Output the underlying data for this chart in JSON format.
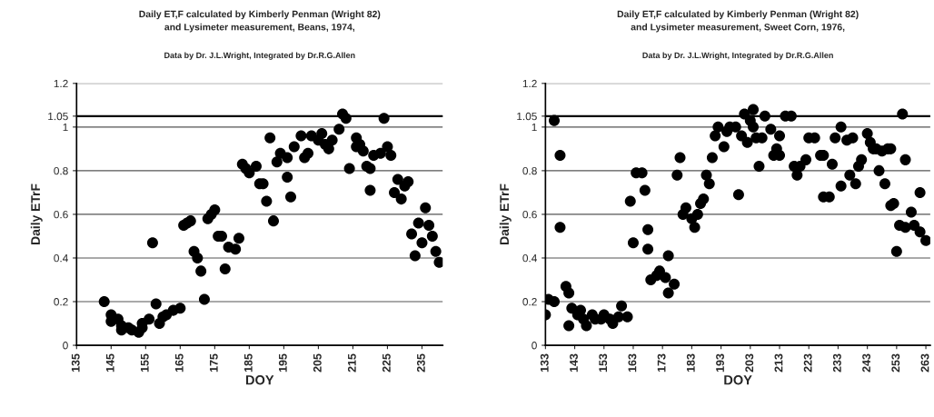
{
  "chart_data": [
    {
      "type": "scatter",
      "title": "Daily ET,F calculated by Kimberly Penman (Wright 82)\nand Lysimeter measurement, Beans, 1974,",
      "subtitle": "Data by Dr. J.L.Wright, Integrated by Dr.R.G.Allen",
      "xlabel": "DOY",
      "ylabel": "Daily ETrF",
      "xlim": [
        135,
        241
      ],
      "xticks": [
        135,
        145,
        155,
        165,
        175,
        185,
        195,
        205,
        215,
        225,
        235
      ],
      "ylim": [
        0,
        1.2
      ],
      "yticks": [
        0,
        0.2,
        0.4,
        0.6,
        0.8,
        1,
        1.05,
        1.2
      ],
      "grid": "y",
      "marker": "circle",
      "ref_lines": [
        {
          "axis": "y",
          "value": 1.05,
          "color": "#000000"
        }
      ],
      "series": [
        {
          "color": "#000000",
          "x": [
            143,
            145,
            145,
            147,
            148,
            148,
            150,
            151,
            153,
            154,
            154,
            156,
            157,
            158,
            159,
            160,
            161,
            163,
            165,
            166,
            167,
            168,
            169,
            170,
            171,
            172,
            173,
            174,
            175,
            176,
            177,
            178,
            179,
            181,
            182,
            183,
            184,
            185,
            187,
            188,
            189,
            190,
            191,
            192,
            193,
            194,
            196,
            196,
            197,
            198,
            200,
            201,
            202,
            203,
            205,
            206,
            207,
            208,
            209,
            211,
            212,
            213,
            214,
            216,
            216,
            217,
            218,
            219,
            220,
            220,
            221,
            223,
            224,
            225,
            226,
            227,
            228,
            229,
            230,
            231,
            232,
            233,
            234,
            235,
            236,
            237,
            238,
            239,
            240
          ],
          "values": [
            0.2,
            0.14,
            0.11,
            0.12,
            0.09,
            0.07,
            0.08,
            0.07,
            0.06,
            0.1,
            0.08,
            0.12,
            0.47,
            0.19,
            0.1,
            0.13,
            0.14,
            0.16,
            0.17,
            0.55,
            0.56,
            0.57,
            0.43,
            0.4,
            0.34,
            0.21,
            0.58,
            0.6,
            0.62,
            0.5,
            0.5,
            0.35,
            0.45,
            0.44,
            0.49,
            0.83,
            0.81,
            0.79,
            0.82,
            0.74,
            0.74,
            0.66,
            0.95,
            0.57,
            0.84,
            0.88,
            0.86,
            0.77,
            0.68,
            0.91,
            0.96,
            0.86,
            0.88,
            0.96,
            0.94,
            0.97,
            0.92,
            0.9,
            0.94,
            0.99,
            1.06,
            1.04,
            0.81,
            0.95,
            0.91,
            0.92,
            0.89,
            0.82,
            0.81,
            0.71,
            0.87,
            0.88,
            1.04,
            0.91,
            0.87,
            0.7,
            0.76,
            0.67,
            0.73,
            0.75,
            0.51,
            0.41,
            0.56,
            0.47,
            0.63,
            0.55,
            0.5,
            0.43,
            0.38
          ]
        }
      ]
    },
    {
      "type": "scatter",
      "title": "Daily ET,F calculated by Kimberly Penman (Wright 82)\nand Lysimeter measurement, Sweet Corn, 1976,",
      "subtitle": "Data by Dr. J.L.Wright, Integrated by Dr.R.G.Allen",
      "xlabel": "DOY",
      "ylabel": "Daily ETrF",
      "xlim": [
        133,
        264.5
      ],
      "xticks": [
        133,
        143,
        153,
        163,
        173,
        183,
        193,
        203,
        213,
        223,
        233,
        243,
        253,
        263
      ],
      "ylim": [
        0,
        1.2
      ],
      "yticks": [
        0,
        0.2,
        0.4,
        0.6,
        0.8,
        1,
        1.05,
        1.2
      ],
      "grid": "y",
      "marker": "circle",
      "ref_lines": [
        {
          "axis": "y",
          "value": 1.05,
          "color": "#000000"
        }
      ],
      "series": [
        {
          "color": "#000000",
          "x": [
            133,
            134,
            136,
            136,
            138,
            138,
            140,
            141,
            141,
            142,
            144,
            145,
            146,
            147,
            149,
            150,
            152,
            153,
            155,
            156,
            158,
            159,
            161,
            162,
            163,
            164,
            166,
            167,
            168,
            168,
            169,
            171,
            172,
            174,
            175,
            175,
            177,
            178,
            179,
            180,
            181,
            183,
            184,
            185,
            186,
            187,
            188,
            189,
            190,
            191,
            192,
            194,
            195,
            196,
            198,
            199,
            200,
            201,
            202,
            203,
            204,
            204,
            205,
            206,
            207,
            208,
            210,
            211,
            212,
            213,
            213,
            215,
            217,
            218,
            219,
            220,
            222,
            223,
            225,
            227,
            228,
            228,
            230,
            231,
            232,
            234,
            234,
            236,
            237,
            238,
            239,
            240,
            241,
            243,
            244,
            245,
            246,
            248,
            250,
            251,
            247,
            249,
            251,
            252,
            253,
            255,
            256,
            254,
            256,
            258,
            259,
            261,
            261,
            263
          ],
          "values": [
            0.14,
            0.21,
            0.2,
            1.03,
            0.87,
            0.54,
            0.27,
            0.24,
            0.09,
            0.17,
            0.14,
            0.16,
            0.12,
            0.09,
            0.14,
            0.12,
            0.12,
            0.14,
            0.12,
            0.1,
            0.13,
            0.18,
            0.13,
            0.66,
            0.47,
            0.79,
            0.79,
            0.71,
            0.53,
            0.44,
            0.3,
            0.32,
            0.34,
            0.31,
            0.41,
            0.24,
            0.28,
            0.78,
            0.86,
            0.6,
            0.63,
            0.58,
            0.54,
            0.6,
            0.65,
            0.67,
            0.78,
            0.74,
            0.86,
            0.96,
            1.0,
            0.91,
            0.98,
            1.0,
            1.0,
            0.69,
            0.96,
            1.06,
            0.93,
            1.03,
            1.08,
            1.0,
            0.95,
            0.82,
            0.95,
            1.05,
            0.99,
            0.87,
            0.9,
            0.96,
            0.87,
            1.05,
            1.05,
            0.82,
            0.78,
            0.82,
            0.85,
            0.95,
            0.95,
            0.87,
            0.87,
            0.68,
            0.68,
            0.83,
            0.95,
            1.0,
            0.73,
            0.94,
            0.78,
            0.95,
            0.74,
            0.82,
            0.85,
            0.97,
            0.93,
            0.9,
            0.9,
            0.89,
            0.9,
            0.9,
            0.8,
            0.74,
            0.64,
            0.65,
            0.43,
            1.06,
            0.85,
            0.55,
            0.54,
            0.61,
            0.55,
            0.7,
            0.52,
            0.48
          ]
        }
      ]
    }
  ]
}
